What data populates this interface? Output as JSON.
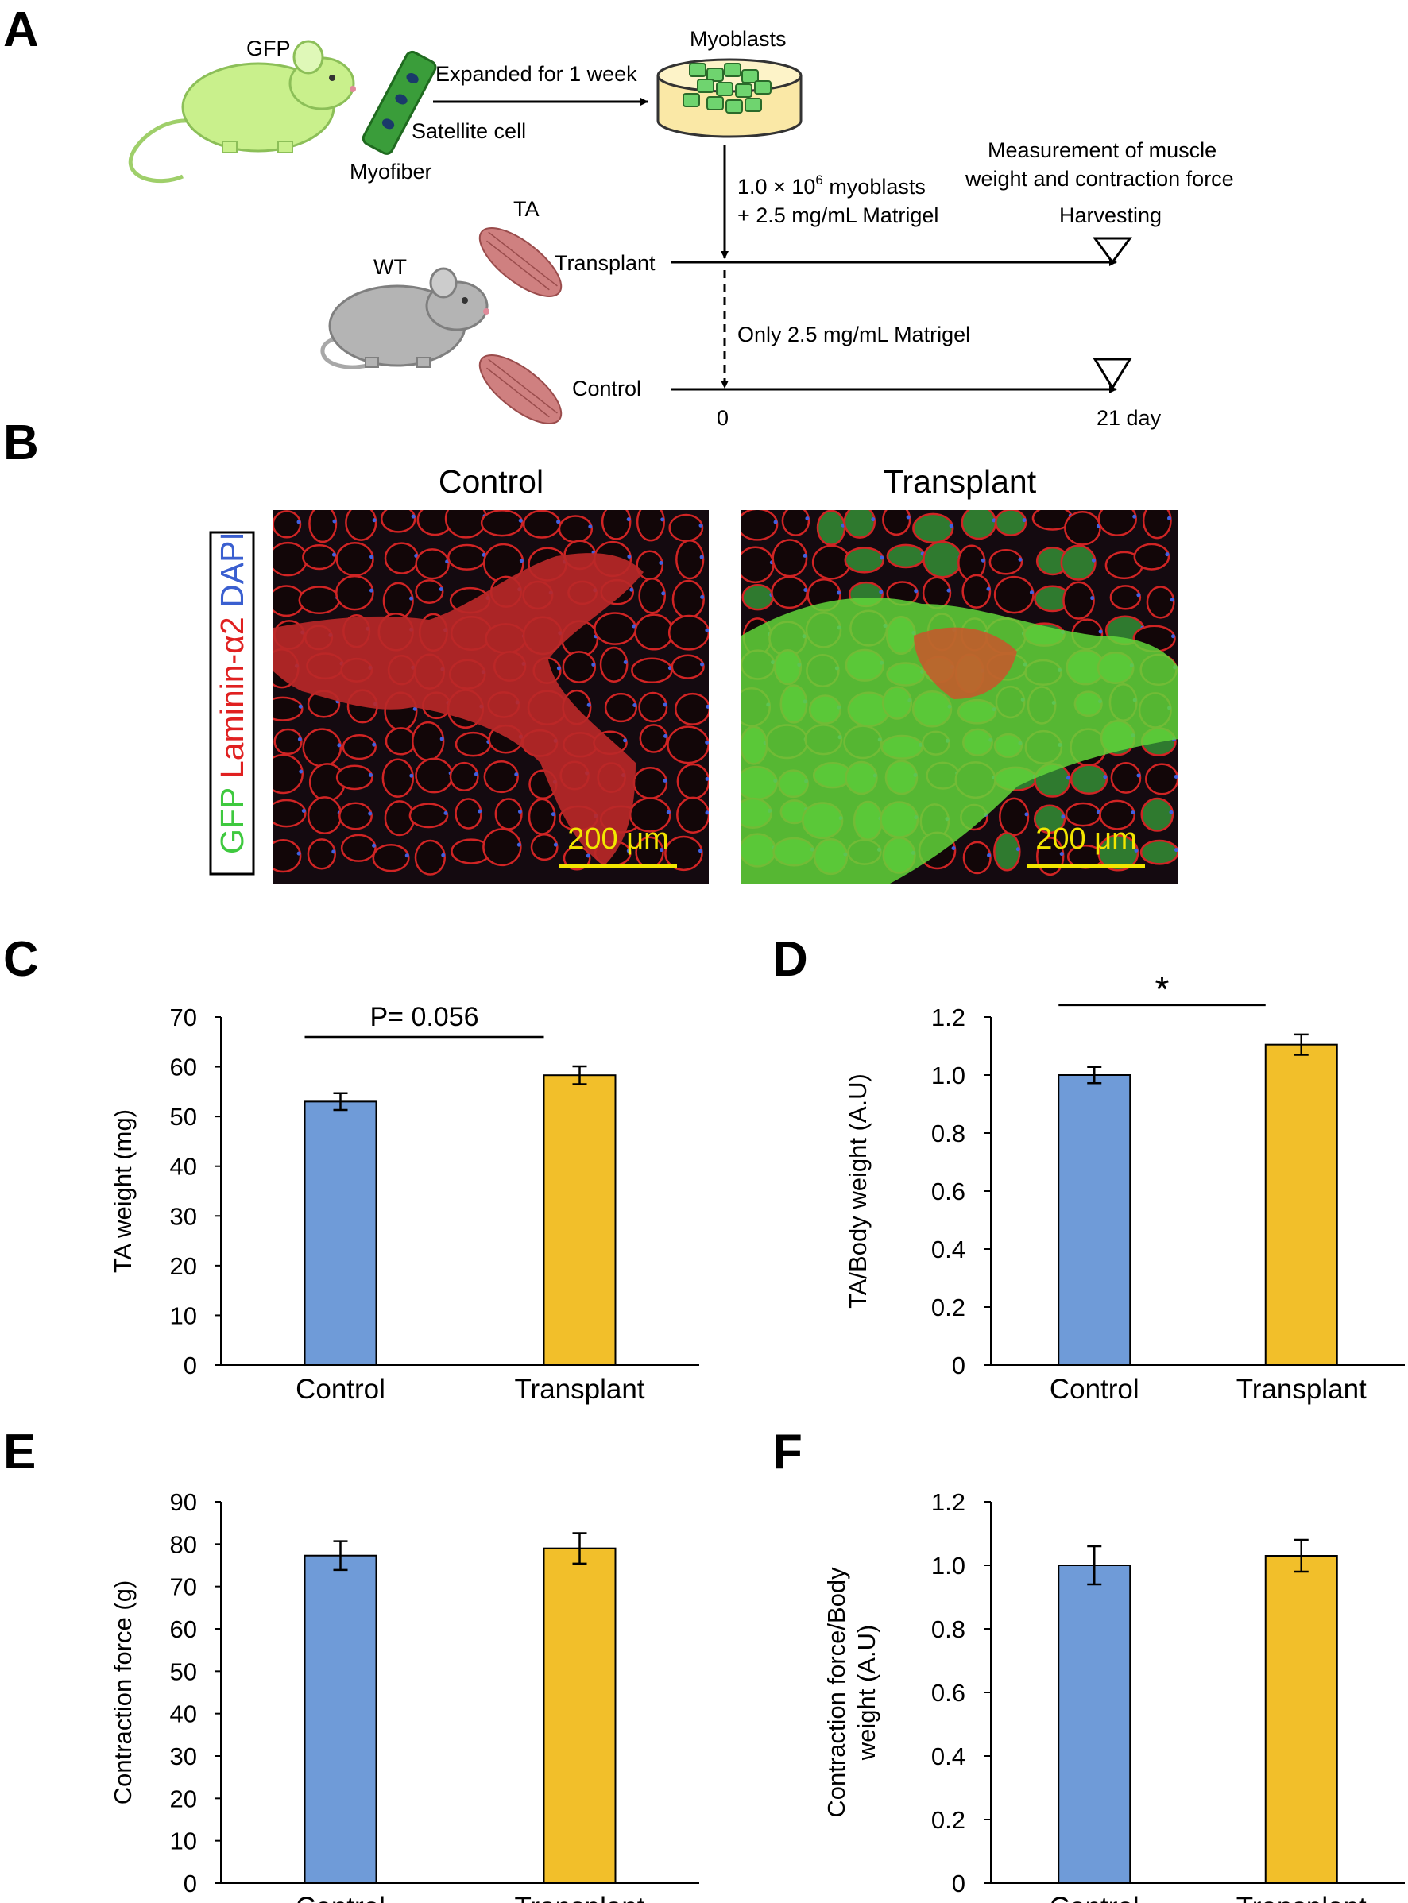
{
  "panels": {
    "A": "A",
    "B": "B",
    "C": "C",
    "D": "D",
    "E": "E",
    "F": "F"
  },
  "schematic": {
    "gfp_label": "GFP",
    "myofiber_label": "Myofiber",
    "satellite_label": "Satellite cell",
    "expanded_label": "Expanded for 1 week",
    "myoblasts_label": "Myoblasts",
    "injection_line1_prefix": "1.0 × 10",
    "injection_line1_sup": "6",
    "injection_line1_suffix": " myoblasts",
    "injection_line2": "+ 2.5 mg/mL Matrigel",
    "measure_line1": "Measurement of muscle",
    "measure_line2": "weight and contraction force",
    "harvesting_label": "Harvesting",
    "ta_label": "TA",
    "wt_label": "WT",
    "transplant_label": "Transplant",
    "control_label": "Control",
    "matrigel_only_label": "Only 2.5 mg/mL Matrigel",
    "day0_label": "0",
    "day21_label": "21 day",
    "colors": {
      "gfp_mouse": "#c9f08c",
      "wt_mouse": "#b4b4b4",
      "muscle": "#cf8080",
      "dish": "#fae8a6",
      "myofiber": "#3a9d3a"
    }
  },
  "micrographs": {
    "control_title": "Control",
    "transplant_title": "Transplant",
    "stain_gfp": "GFP",
    "stain_laminin": "Laminin-α2",
    "stain_dapi": "DAPI",
    "scale_label": "200 μm",
    "colors": {
      "gfp": "#3fc93f",
      "laminin": "#e02020",
      "dapi": "#3a5fd0",
      "scale": "#f2e600"
    }
  },
  "chart_data": [
    {
      "panel": "C",
      "type": "bar",
      "categories": [
        "Control",
        "Transplant"
      ],
      "values": [
        53,
        58.3
      ],
      "errors": [
        1.7,
        1.8
      ],
      "colors": [
        "#6f9bd8",
        "#f2bf2a"
      ],
      "ylabel": "TA weight (mg)",
      "ylim": [
        0,
        70
      ],
      "yticks": [
        "0",
        "10",
        "20",
        "30",
        "40",
        "50",
        "60",
        "70"
      ],
      "annotation": "P= 0.056",
      "grid": false
    },
    {
      "panel": "D",
      "type": "bar",
      "categories": [
        "Control",
        "Transplant"
      ],
      "values": [
        1.0,
        1.105
      ],
      "errors": [
        0.028,
        0.035
      ],
      "colors": [
        "#6f9bd8",
        "#f2bf2a"
      ],
      "ylabel": "TA/Body weight (A.U)",
      "ylim": [
        0,
        1.2
      ],
      "yticks": [
        "0",
        "0.2",
        "0.4",
        "0.6",
        "0.8",
        "1.0",
        "1.2"
      ],
      "annotation": "*",
      "grid": false
    },
    {
      "panel": "E",
      "type": "bar",
      "categories": [
        "Control",
        "Transplant"
      ],
      "values": [
        77.3,
        79
      ],
      "errors": [
        3.4,
        3.6
      ],
      "colors": [
        "#6f9bd8",
        "#f2bf2a"
      ],
      "ylabel": "Contraction force (g)",
      "ylim": [
        0,
        90
      ],
      "yticks": [
        "0",
        "10",
        "20",
        "30",
        "40",
        "50",
        "60",
        "70",
        "80",
        "90"
      ],
      "annotation": "",
      "grid": false
    },
    {
      "panel": "F",
      "type": "bar",
      "categories": [
        "Control",
        "Transplant"
      ],
      "values": [
        1.0,
        1.03
      ],
      "errors": [
        0.06,
        0.05
      ],
      "colors": [
        "#6f9bd8",
        "#f2bf2a"
      ],
      "ylabel_lines": [
        "Contraction force/Body",
        "weight (A.U)"
      ],
      "ylim": [
        0,
        1.2
      ],
      "yticks": [
        "0",
        "0.2",
        "0.4",
        "0.6",
        "0.8",
        "1.0",
        "1.2"
      ],
      "annotation": "",
      "grid": false
    }
  ]
}
